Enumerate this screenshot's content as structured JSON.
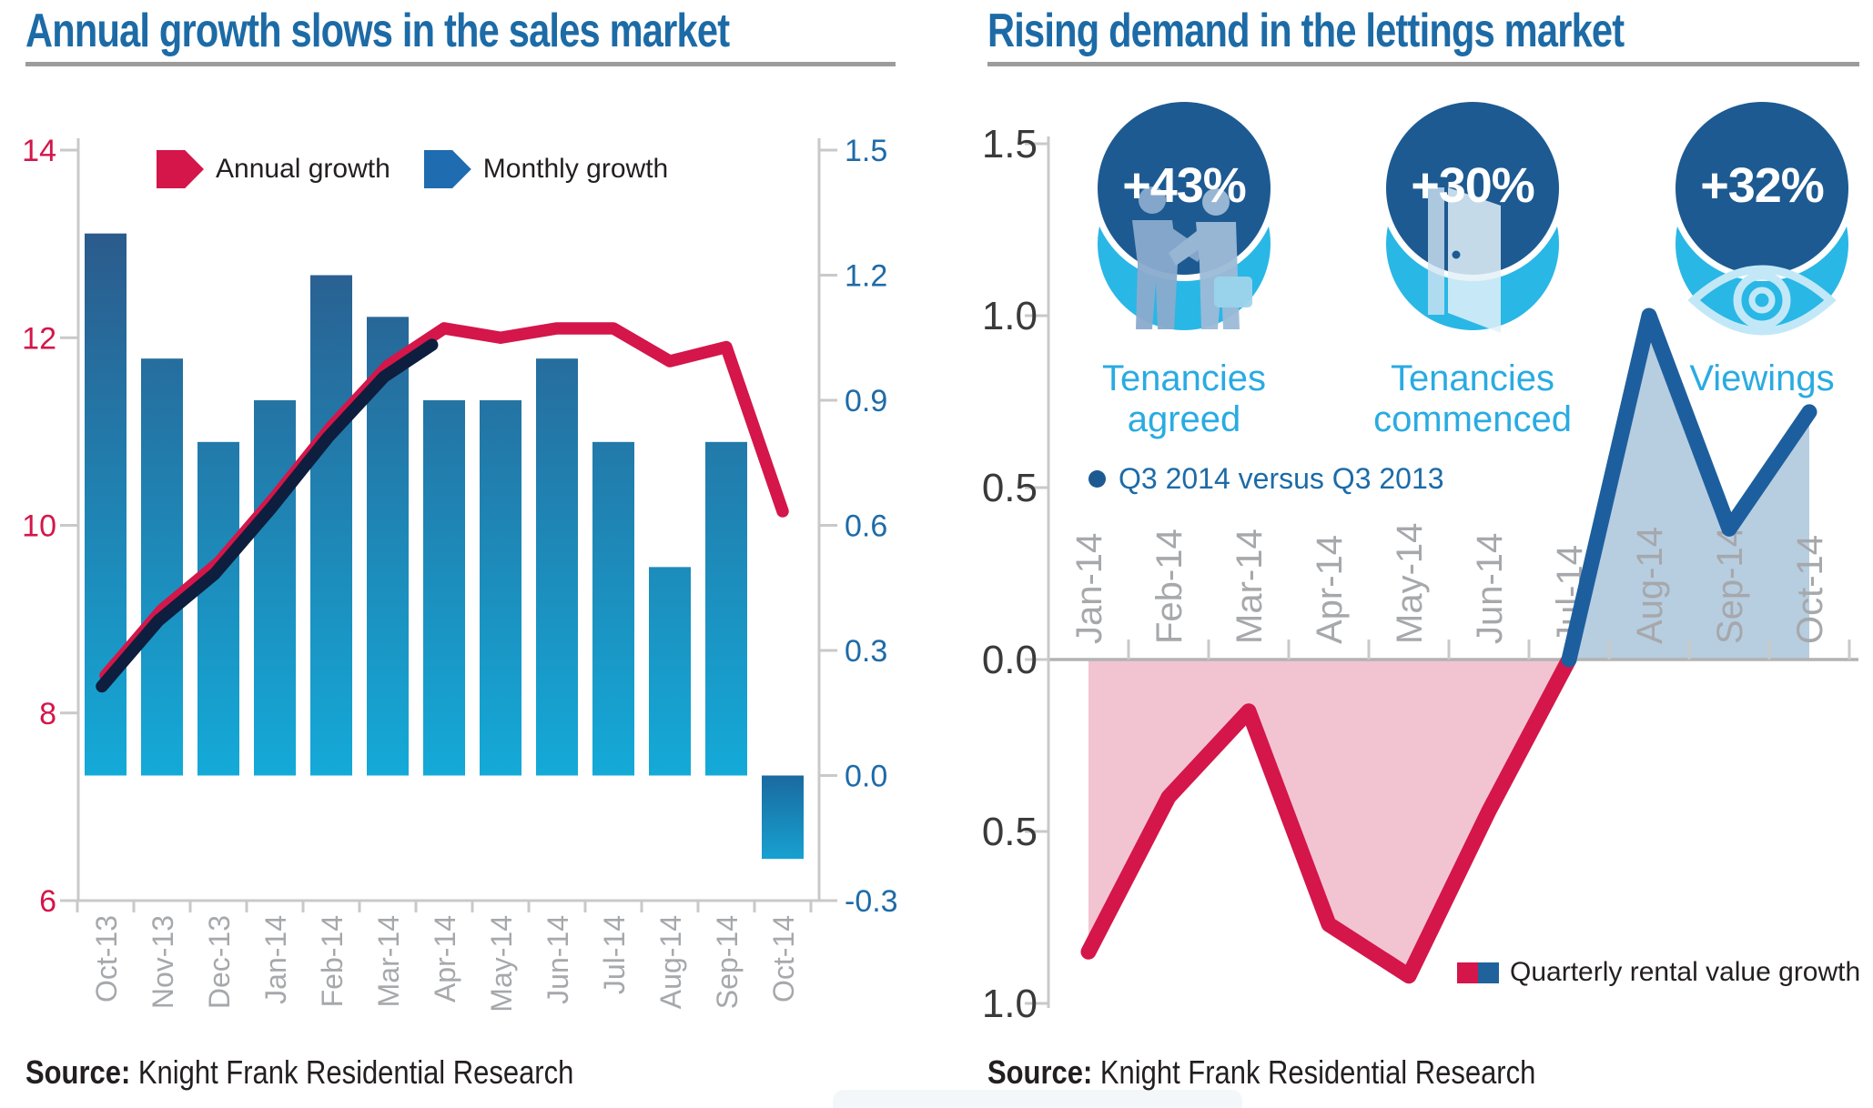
{
  "page_type": "infographic-two-charts",
  "colors": {
    "title_blue": "#1c6ba6",
    "crimson": "#d4164a",
    "navy_overlay_line": "#0e1e3e",
    "bar_gradient_top": "#2b5b8c",
    "bar_gradient_bottom": "#14aad8",
    "legend_blue_arrow": "#1f6cb0",
    "lettings_line_blue": "#1d5f9e",
    "negative_area_pink": "#f2c4d1",
    "positive_area_blue": "#b7cde0",
    "badge_navy": "#1d5a92",
    "badge_cyan": "#29b7e6",
    "cyan_text": "#29abe2",
    "axis_gray": "#c9c9c9",
    "tick_label_gray": "#a6a8ab",
    "underline_gray": "#9d9c9b",
    "dark_text": "#231f20"
  },
  "chart_data": [
    {
      "id": "sales",
      "type": "bar",
      "subtype": "combo-bar-line-dual-axis",
      "title": "Annual growth slows in the sales market",
      "categories": [
        "Oct-13",
        "Nov-13",
        "Dec-13",
        "Jan-14",
        "Feb-14",
        "Mar-14",
        "Apr-14",
        "May-14",
        "Jun-14",
        "Jul-14",
        "Aug-14",
        "Sep-14",
        "Oct-14"
      ],
      "series": [
        {
          "name": "Annual growth",
          "type": "line",
          "axis": "left",
          "color": "#d4164a",
          "values": [
            8.4,
            9.1,
            9.6,
            10.3,
            11.05,
            11.7,
            12.1,
            12.0,
            12.1,
            12.1,
            11.75,
            11.9,
            10.15
          ],
          "overlay_shadow": {
            "color": "#0e1e3e",
            "from_index": 0,
            "to_index": 6
          }
        },
        {
          "name": "Monthly growth",
          "type": "bar",
          "axis": "right",
          "color": "#1f6cb0",
          "values": [
            1.3,
            1.0,
            0.8,
            0.9,
            1.2,
            1.1,
            0.9,
            0.9,
            1.0,
            0.8,
            0.5,
            0.8,
            -0.2
          ]
        }
      ],
      "left_axis": {
        "ticks": [
          "14",
          "12",
          "10",
          "8",
          "6"
        ],
        "range": [
          6,
          14
        ],
        "color": "#d4164a"
      },
      "right_axis": {
        "ticks": [
          "1.5",
          "1.2",
          "0.9",
          "0.6",
          "0.3",
          "0.0",
          "-0.3"
        ],
        "range": [
          -0.3,
          1.5
        ],
        "color": "#1e6ba8"
      },
      "grid": "off",
      "legend_position": "top-inside",
      "source": {
        "label": "Source:",
        "text": "Knight Frank Residential Research"
      }
    },
    {
      "id": "lettings",
      "type": "area",
      "subtype": "diverging-area-line",
      "title": "Rising demand in the lettings market",
      "categories": [
        "Jan-14",
        "Feb-14",
        "Mar-14",
        "Apr-14",
        "May-14",
        "Jun-14",
        "Jul-14",
        "Aug-14",
        "Sep-14",
        "Oct-14"
      ],
      "series": [
        {
          "name": "Quarterly rental value growth",
          "values": [
            -0.85,
            -0.4,
            -0.15,
            -0.77,
            -0.92,
            -0.44,
            0.0,
            1.0,
            0.38,
            0.72
          ],
          "negative_color": "#d4164a",
          "positive_color": "#1d5f9e",
          "negative_fill": "#f2c4d1",
          "positive_fill": "#b7cde0"
        }
      ],
      "y_axis": {
        "tick_labels": [
          "1.5",
          "1.0",
          "0.5",
          "0.0",
          "0.5",
          "1.0"
        ],
        "tick_values": [
          1.5,
          1.0,
          0.5,
          0.0,
          -0.5,
          -1.0
        ],
        "range": [
          -1.0,
          1.5
        ],
        "color": "#3a3a3a"
      },
      "grid": "off",
      "badges": [
        {
          "value": "+43%",
          "label_line1": "Tenancies",
          "label_line2": "agreed",
          "icon": "handshake-icon"
        },
        {
          "value": "+30%",
          "label_line1": "Tenancies",
          "label_line2": "commenced",
          "icon": "door-icon"
        },
        {
          "value": "+32%",
          "label_line1": "Viewings",
          "label_line2": "",
          "icon": "eye-icon"
        }
      ],
      "note": "Q3 2014 versus Q3 2013",
      "legend": {
        "label": "Quarterly rental value growth",
        "colors": [
          "#d4164a",
          "#1d5f9e"
        ],
        "position": "bottom-right-inside"
      },
      "source": {
        "label": "Source:",
        "text": "Knight Frank Residential Research"
      }
    }
  ]
}
